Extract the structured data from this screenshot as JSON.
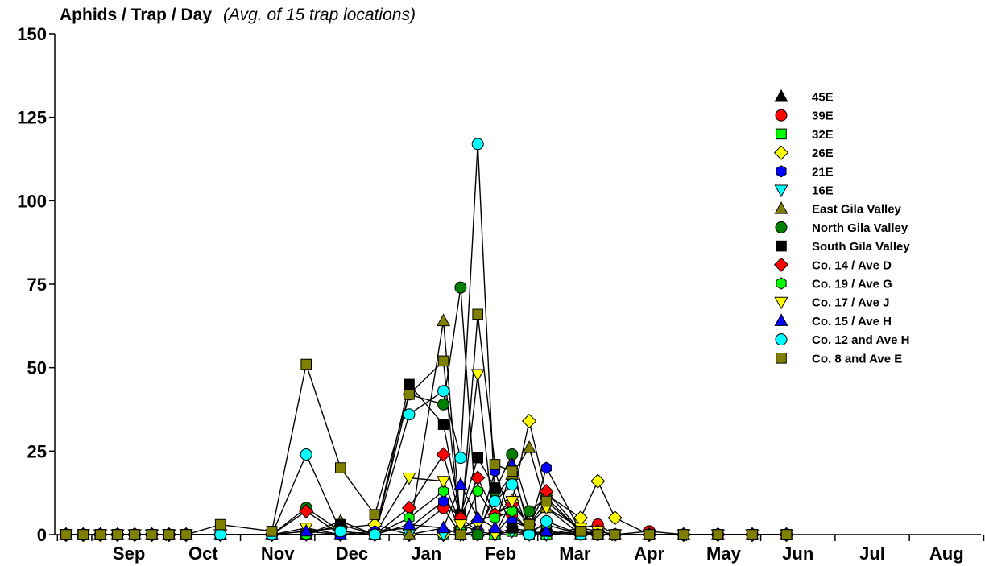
{
  "chart_data": {
    "type": "line",
    "title": "Aphids / Trap / Day",
    "subtitle": "(Avg. of 15 trap locations)",
    "xlabel": "",
    "ylabel": "",
    "ylim": [
      0,
      150
    ],
    "y_ticks": [
      "0",
      "25",
      "50",
      "75",
      "100",
      "125",
      "150"
    ],
    "x_month_labels": [
      "Sep",
      "Oct",
      "Nov",
      "Dec",
      "Jan",
      "Feb",
      "Mar",
      "Apr",
      "May",
      "Jun",
      "Jul",
      "Aug"
    ],
    "x_unit": "weeks from start of September",
    "xlim": [
      -2.5,
      51
    ],
    "grid": false,
    "legend_position": "top-right",
    "base_dates": [
      -2,
      -1,
      0,
      1,
      2,
      3,
      4,
      5,
      7,
      9,
      10,
      12,
      14,
      16,
      18,
      20,
      21,
      22,
      23,
      24,
      25,
      26,
      28,
      29,
      30,
      32,
      34,
      36,
      38,
      40
    ],
    "series": [
      {
        "name": "45E",
        "marker": "triangle-up",
        "color": "#000000",
        "x": [
          -2,
          -1,
          0,
          1,
          2,
          3,
          4,
          5,
          7,
          10,
          12,
          14,
          16,
          18,
          20,
          21,
          22,
          23,
          24,
          25,
          26,
          28,
          29,
          30,
          32,
          34,
          36,
          38,
          40
        ],
        "values": [
          0,
          0,
          0,
          0,
          0,
          0,
          0,
          0,
          0,
          0,
          0,
          0,
          0,
          0,
          2,
          0,
          1,
          0,
          2,
          1,
          0,
          1,
          0,
          0,
          0,
          0,
          0,
          0,
          0
        ]
      },
      {
        "name": "39E",
        "marker": "circle",
        "color": "#ff0000",
        "x": [
          -2,
          -1,
          0,
          1,
          2,
          3,
          4,
          5,
          7,
          10,
          12,
          14,
          16,
          18,
          20,
          21,
          22,
          23,
          24,
          25,
          26,
          28,
          29,
          30,
          32,
          34,
          36,
          38,
          40
        ],
        "values": [
          0,
          0,
          0,
          0,
          0,
          0,
          0,
          0,
          0,
          0,
          0,
          0,
          0,
          0,
          8,
          0,
          1,
          0,
          6,
          1,
          0,
          2,
          3,
          0,
          1,
          0,
          0,
          0,
          0
        ]
      },
      {
        "name": "32E",
        "marker": "square",
        "color": "#00ff00",
        "x": [
          -2,
          -1,
          0,
          1,
          2,
          3,
          4,
          5,
          7,
          10,
          12,
          14,
          16,
          18,
          20,
          21,
          22,
          23,
          24,
          25,
          26,
          28,
          29,
          30,
          32,
          34,
          36,
          38,
          40
        ],
        "values": [
          0,
          0,
          0,
          0,
          0,
          0,
          0,
          0,
          0,
          0,
          0,
          0,
          0,
          0,
          0,
          0,
          0,
          0,
          1,
          0,
          0,
          1,
          0,
          0,
          0,
          0,
          0,
          0,
          0
        ]
      },
      {
        "name": "26E",
        "marker": "diamond",
        "color": "#ffff00",
        "x": [
          -2,
          -1,
          0,
          1,
          2,
          3,
          4,
          5,
          7,
          10,
          12,
          14,
          16,
          18,
          20,
          21,
          22,
          23,
          24,
          25,
          26,
          28,
          29,
          30,
          32,
          34,
          36,
          38,
          40
        ],
        "values": [
          0,
          0,
          0,
          0,
          0,
          0,
          0,
          0,
          0,
          0,
          1,
          2,
          3,
          0,
          0,
          2,
          4,
          6,
          10,
          34,
          12,
          5,
          16,
          5,
          0,
          0,
          0,
          0,
          0
        ]
      },
      {
        "name": "21E",
        "marker": "hexagon",
        "color": "#0000ff",
        "x": [
          -2,
          -1,
          0,
          1,
          2,
          3,
          4,
          5,
          7,
          10,
          12,
          14,
          16,
          18,
          20,
          21,
          22,
          23,
          24,
          25,
          26,
          28,
          29,
          30,
          32,
          34,
          36,
          38,
          40
        ],
        "values": [
          0,
          0,
          0,
          0,
          0,
          0,
          0,
          0,
          0,
          0,
          0,
          0,
          1,
          2,
          10,
          5,
          1,
          19,
          4,
          2,
          20,
          1,
          0,
          0,
          0,
          0,
          0,
          0,
          0
        ]
      },
      {
        "name": "16E",
        "marker": "triangle-down",
        "color": "#00ffff",
        "x": [
          -2,
          -1,
          0,
          1,
          2,
          3,
          4,
          5,
          7,
          10,
          12,
          14,
          16,
          18,
          20,
          21,
          22,
          23,
          24,
          25,
          26,
          28,
          29,
          30,
          32,
          34,
          36,
          38,
          40
        ],
        "values": [
          0,
          0,
          0,
          0,
          0,
          0,
          0,
          0,
          0,
          0,
          0,
          0,
          0,
          0,
          0,
          0,
          0,
          0,
          1,
          0,
          0,
          1,
          0,
          0,
          0,
          0,
          0,
          0,
          0
        ]
      },
      {
        "name": "East Gila Valley",
        "marker": "triangle-up",
        "color": "#808000",
        "x": [
          -2,
          -1,
          0,
          1,
          2,
          3,
          4,
          5,
          7,
          10,
          12,
          14,
          16,
          18,
          20,
          21,
          22,
          23,
          24,
          25,
          26,
          28,
          29,
          30,
          32,
          34,
          36,
          38,
          40
        ],
        "values": [
          0,
          0,
          0,
          0,
          0,
          0,
          0,
          0,
          0,
          0,
          0,
          4,
          0,
          0,
          64,
          3,
          1,
          11,
          18,
          26,
          8,
          0,
          1,
          0,
          0,
          0,
          0,
          0,
          0
        ]
      },
      {
        "name": "North Gila Valley",
        "marker": "circle",
        "color": "#008000",
        "x": [
          -2,
          -1,
          0,
          1,
          2,
          3,
          4,
          5,
          7,
          10,
          12,
          14,
          16,
          18,
          20,
          21,
          22,
          23,
          24,
          25,
          26,
          28,
          29,
          30,
          32,
          34,
          36,
          38,
          40
        ],
        "values": [
          0,
          0,
          0,
          0,
          0,
          0,
          0,
          0,
          0,
          0,
          8,
          1,
          0,
          42,
          39,
          74,
          0,
          13,
          24,
          7,
          11,
          1,
          0,
          0,
          0,
          0,
          0,
          0,
          0
        ]
      },
      {
        "name": "South Gila Valley",
        "marker": "square",
        "color": "#000000",
        "x": [
          -2,
          -1,
          0,
          1,
          2,
          3,
          4,
          5,
          7,
          10,
          12,
          14,
          16,
          18,
          20,
          21,
          22,
          23,
          24,
          25,
          26,
          28,
          29,
          30,
          32,
          34,
          36,
          38,
          40
        ],
        "values": [
          0,
          0,
          0,
          0,
          0,
          0,
          0,
          0,
          0,
          0,
          0,
          3,
          0,
          45,
          33,
          6,
          23,
          14,
          2,
          0,
          1,
          0,
          0,
          0,
          0,
          0,
          0,
          0,
          0
        ]
      },
      {
        "name": "Co. 14 / Ave D",
        "marker": "diamond",
        "color": "#ff0000",
        "x": [
          -2,
          -1,
          0,
          1,
          2,
          3,
          4,
          5,
          7,
          10,
          12,
          14,
          16,
          18,
          20,
          21,
          22,
          23,
          24,
          25,
          26,
          28,
          29,
          30,
          32,
          34,
          36,
          38,
          40
        ],
        "values": [
          0,
          0,
          0,
          0,
          0,
          0,
          0,
          0,
          0,
          0,
          7,
          0,
          0,
          8,
          24,
          5,
          17,
          6,
          9,
          3,
          13,
          1,
          1,
          0,
          0,
          0,
          0,
          0,
          0
        ]
      },
      {
        "name": "Co. 19 / Ave G",
        "marker": "hexagon",
        "color": "#00ff00",
        "x": [
          -2,
          -1,
          0,
          1,
          2,
          3,
          4,
          5,
          7,
          10,
          12,
          14,
          16,
          18,
          20,
          21,
          22,
          23,
          24,
          25,
          26,
          28,
          29,
          30,
          32,
          34,
          36,
          38,
          40
        ],
        "values": [
          0,
          0,
          0,
          0,
          0,
          0,
          0,
          0,
          0,
          0,
          0,
          0,
          0,
          5,
          13,
          1,
          13,
          5,
          7,
          1,
          3,
          0,
          0,
          0,
          0,
          0,
          0,
          0,
          0
        ]
      },
      {
        "name": "Co. 17 / Ave J",
        "marker": "triangle-down",
        "color": "#ffff00",
        "x": [
          -2,
          -1,
          0,
          1,
          2,
          3,
          4,
          5,
          7,
          10,
          12,
          14,
          16,
          18,
          20,
          21,
          22,
          23,
          24,
          25,
          26,
          28,
          29,
          30,
          32,
          34,
          36,
          38,
          40
        ],
        "values": [
          0,
          0,
          0,
          0,
          0,
          0,
          0,
          0,
          0,
          0,
          2,
          0,
          0,
          17,
          16,
          3,
          48,
          0,
          10,
          3,
          8,
          2,
          1,
          0,
          0,
          0,
          0,
          0,
          0
        ]
      },
      {
        "name": "Co. 15 / Ave H",
        "marker": "triangle-up",
        "color": "#0000ff",
        "x": [
          -2,
          -1,
          0,
          1,
          2,
          3,
          4,
          5,
          7,
          10,
          12,
          14,
          16,
          18,
          20,
          21,
          22,
          23,
          24,
          25,
          26,
          28,
          29,
          30,
          32,
          34,
          36,
          38,
          40
        ],
        "values": [
          0,
          0,
          0,
          0,
          0,
          0,
          0,
          0,
          0,
          0,
          1,
          0,
          0,
          3,
          2,
          15,
          5,
          2,
          21,
          1,
          1,
          0,
          0,
          0,
          0,
          0,
          0,
          0,
          0
        ]
      },
      {
        "name": "Co. 12 and Ave H",
        "marker": "circle",
        "color": "#00ffff",
        "x": [
          -2,
          -1,
          0,
          1,
          2,
          3,
          4,
          5,
          7,
          10,
          12,
          14,
          16,
          18,
          20,
          21,
          22,
          23,
          24,
          25,
          26,
          28,
          29,
          30,
          32,
          34,
          36,
          38,
          40
        ],
        "values": [
          0,
          0,
          0,
          0,
          0,
          0,
          0,
          0,
          0,
          0,
          24,
          1,
          0,
          36,
          43,
          23,
          117,
          10,
          15,
          0,
          4,
          0,
          0,
          0,
          0,
          0,
          0,
          0,
          0
        ]
      },
      {
        "name": "Co. 8 and Ave E",
        "marker": "square",
        "color": "#808000",
        "x": [
          -2,
          -1,
          0,
          1,
          2,
          3,
          4,
          5,
          7,
          10,
          12,
          14,
          16,
          18,
          20,
          21,
          22,
          23,
          24,
          25,
          26,
          28,
          29,
          30,
          32,
          34,
          36,
          38,
          40
        ],
        "values": [
          0,
          0,
          0,
          0,
          0,
          0,
          0,
          0,
          3,
          1,
          51,
          20,
          6,
          42,
          52,
          0,
          66,
          21,
          19,
          3,
          10,
          1,
          0,
          0,
          0,
          0,
          0,
          0,
          0
        ]
      }
    ]
  }
}
